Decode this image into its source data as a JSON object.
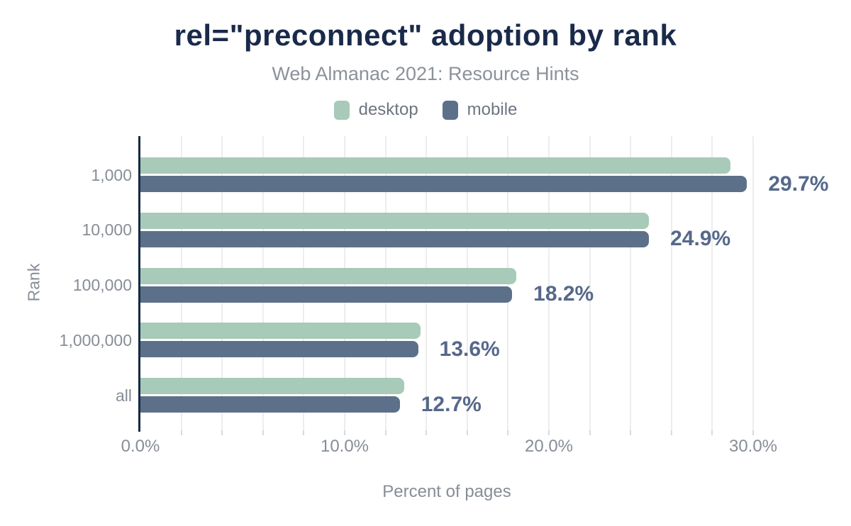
{
  "chart_data": {
    "type": "bar",
    "orientation": "horizontal",
    "title": "rel=\"preconnect\" adoption by rank",
    "subtitle": "Web Almanac 2021: Resource Hints",
    "xlabel": "Percent of pages",
    "ylabel": "Rank",
    "categories": [
      "1,000",
      "10,000",
      "100,000",
      "1,000,000",
      "all"
    ],
    "series": [
      {
        "name": "desktop",
        "color": "#a8cab8",
        "values": [
          28.9,
          24.9,
          18.4,
          13.7,
          12.9
        ]
      },
      {
        "name": "mobile",
        "color": "#5d7089",
        "values": [
          29.7,
          24.9,
          18.2,
          13.6,
          12.7
        ]
      }
    ],
    "data_labels": [
      "29.7%",
      "24.9%",
      "18.2%",
      "13.6%",
      "12.7%"
    ],
    "x_ticks": [
      {
        "value": 0,
        "label": "0.0%"
      },
      {
        "value": 10,
        "label": "10.0%"
      },
      {
        "value": 20,
        "label": "20.0%"
      },
      {
        "value": 30,
        "label": "30.0%"
      }
    ],
    "xlim": [
      0,
      30
    ],
    "grid": true,
    "grid_step_pct": 2,
    "legend_position": "top"
  },
  "colors": {
    "title": "#1a2a4a",
    "subtitle": "#8c929b",
    "legend_text": "#6e7580",
    "axis_text": "#878d97",
    "axis_line": "#152a44",
    "data_label": "#56688b",
    "gridline": "#ededed"
  }
}
